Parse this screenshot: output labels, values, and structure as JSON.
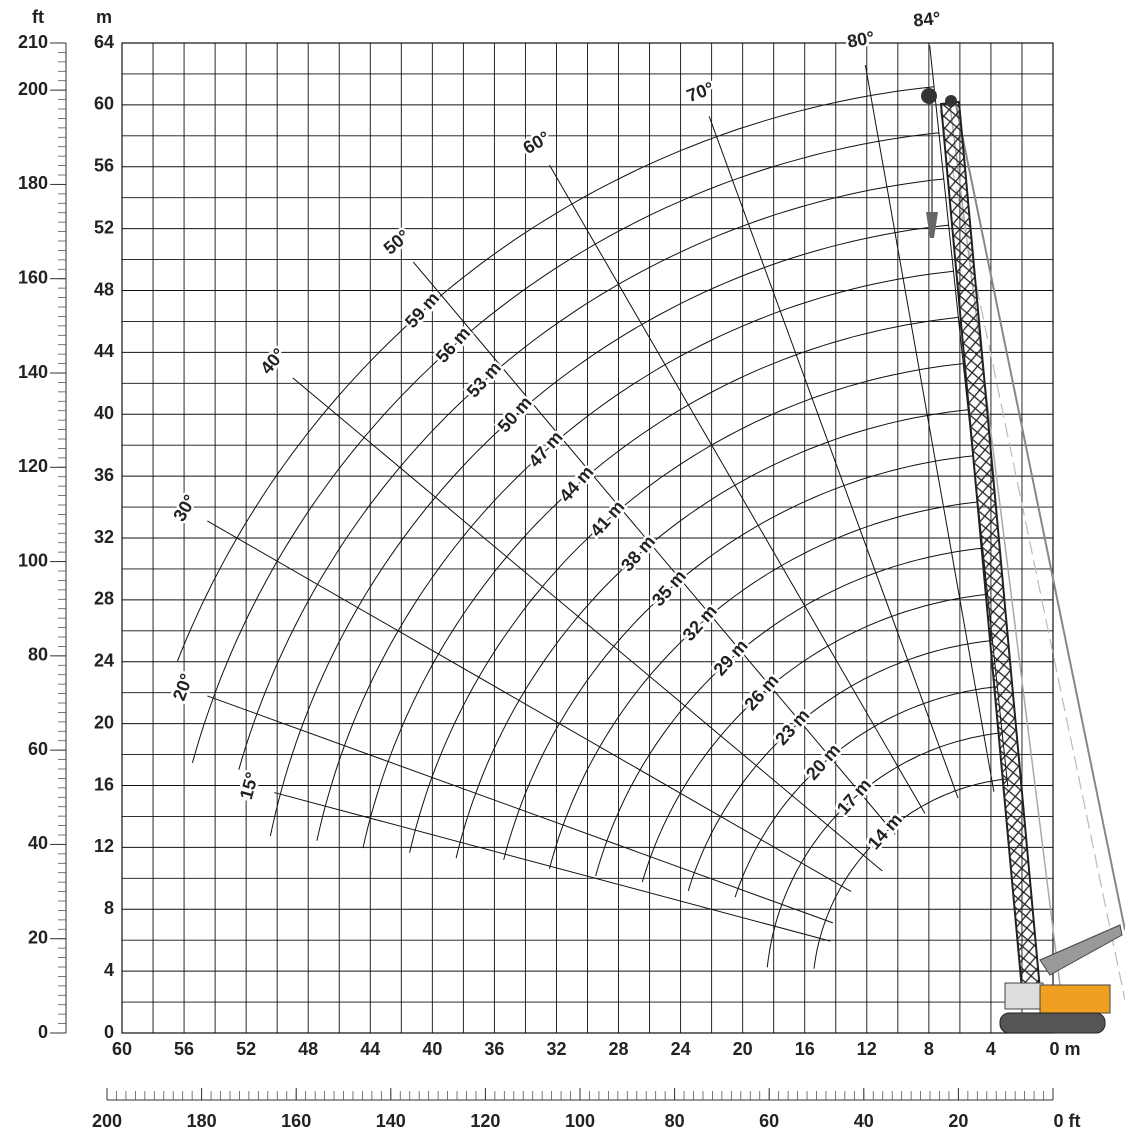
{
  "chart_data": {
    "type": "working-range",
    "x_unit_label": "m",
    "y_unit_label": "m",
    "y2_unit_label": "ft",
    "xlim": [
      60,
      0
    ],
    "xticks": [
      60,
      56,
      52,
      48,
      44,
      40,
      36,
      32,
      28,
      24,
      20,
      16,
      12,
      8,
      4,
      {
        "value": 0,
        "label": "0 m"
      }
    ],
    "xgrid": [
      60,
      58,
      56,
      54,
      52,
      50,
      48,
      46,
      44,
      42,
      40,
      38,
      36,
      34,
      32,
      30,
      28,
      26,
      24,
      22,
      20,
      18,
      16,
      14,
      12,
      10,
      8,
      6,
      4,
      2,
      0
    ],
    "ylim": [
      0,
      64
    ],
    "yticks": [
      0,
      4,
      8,
      12,
      16,
      20,
      24,
      28,
      32,
      36,
      40,
      44,
      48,
      52,
      56,
      60,
      64
    ],
    "ygrid": [
      0,
      2,
      4,
      6,
      8,
      10,
      12,
      14,
      16,
      18,
      20,
      22,
      24,
      26,
      28,
      30,
      32,
      34,
      36,
      38,
      40,
      42,
      44,
      46,
      48,
      50,
      52,
      54,
      56,
      58,
      60,
      62,
      64
    ],
    "y2lim": [
      0,
      210
    ],
    "y2ticks": [
      0,
      20,
      40,
      60,
      80,
      100,
      120,
      140,
      160,
      180,
      200,
      210
    ],
    "y2_minor_step": 2,
    "x2lim": [
      200,
      0
    ],
    "x2ticks": [
      200,
      180,
      160,
      140,
      120,
      100,
      80,
      60,
      40,
      20,
      {
        "value": 0,
        "label": "0 ft"
      }
    ],
    "x2_minor_step": 2,
    "boom_pivot": {
      "x": 1.5,
      "y": 2.5
    },
    "arc_max_angle": 84,
    "booms": [
      {
        "label": "14 m",
        "length": 14,
        "min_angle": 6.8
      },
      {
        "label": "17 m",
        "length": 17,
        "min_angle": 5.9
      },
      {
        "label": "20 m",
        "length": 20,
        "min_angle": 18.3
      },
      {
        "label": "23 m",
        "length": 23,
        "min_angle": 16.9
      },
      {
        "label": "26 m",
        "length": 26,
        "min_angle": 16.2
      },
      {
        "label": "29 m",
        "length": 29,
        "min_angle": 15.3
      },
      {
        "label": "32 m",
        "length": 32,
        "min_angle": 14.7
      },
      {
        "label": "35 m",
        "length": 35,
        "min_angle": 14.4
      },
      {
        "label": "38 m",
        "length": 38,
        "min_angle": 13.4
      },
      {
        "label": "41 m",
        "length": 41,
        "min_angle": 12.9
      },
      {
        "label": "44 m",
        "length": 44,
        "min_angle": 12.4
      },
      {
        "label": "47 m",
        "length": 47,
        "min_angle": 12.2
      },
      {
        "label": "50 m",
        "length": 50,
        "min_angle": 11.8
      },
      {
        "label": "53 m",
        "length": 53,
        "min_angle": 15.9
      },
      {
        "label": "56 m",
        "length": 56,
        "min_angle": 15.5
      },
      {
        "label": "59 m",
        "length": 59,
        "min_angle": 21.4
      }
    ],
    "angles": [
      {
        "label": "15°",
        "angle": 15,
        "r_min": 13.3,
        "r_max": 50.4
      },
      {
        "label": "20°",
        "angle": 20,
        "r_min": 13.5,
        "r_max": 56.4
      },
      {
        "label": "30°",
        "angle": 30,
        "r_min": 13.3,
        "r_max": 61.2
      },
      {
        "label": "40°",
        "angle": 40,
        "r_min": 12.4,
        "r_max": 62
      },
      {
        "label": "50°",
        "angle": 50,
        "r_min": 13.5,
        "r_max": 61.8
      },
      {
        "label": "60°",
        "angle": 60,
        "r_min": 13.5,
        "r_max": 61.9
      },
      {
        "label": "70°",
        "angle": 70,
        "r_min": 13.5,
        "r_max": 60.4
      },
      {
        "label": "80°",
        "angle": 80,
        "r_min": 13.3,
        "r_max": 61
      },
      {
        "label": "84°",
        "angle": 84,
        "r_min": 13.5,
        "r_max": 61.7
      }
    ]
  }
}
